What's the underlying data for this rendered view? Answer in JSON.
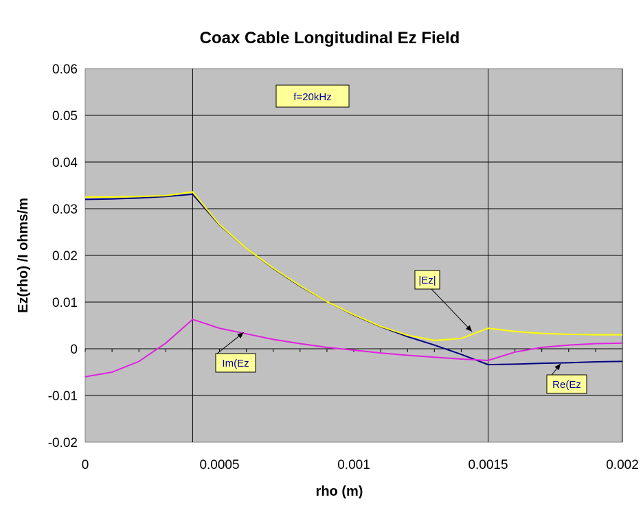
{
  "chart_data": {
    "type": "line",
    "title": "Coax Cable Longitudinal Ez Field",
    "xlabel": "rho (m)",
    "ylabel": "Ez(rho) /I  ohms/m",
    "xlim": [
      0,
      0.002
    ],
    "ylim": [
      -0.02,
      0.06
    ],
    "x_ticks": [
      "0",
      "0.0005",
      "0.001",
      "0.0015",
      "0.002"
    ],
    "y_ticks": [
      "0.06",
      "0.05",
      "0.04",
      "0.03",
      "0.02",
      "0.01",
      "0",
      "-0.01",
      "-0.02"
    ],
    "vertical_lines": [
      0.0004,
      0.0015,
      0.002
    ],
    "annotation": "f=20kHz",
    "series": [
      {
        "name": "Re(Ez",
        "color": "#000080",
        "points": [
          [
            0,
            0.032
          ],
          [
            0.0001,
            0.0321
          ],
          [
            0.0002,
            0.0323
          ],
          [
            0.0003,
            0.0326
          ],
          [
            0.0004,
            0.0331
          ],
          [
            0.0005,
            0.0265
          ],
          [
            0.0006,
            0.0215
          ],
          [
            0.0007,
            0.0172
          ],
          [
            0.0008,
            0.0134
          ],
          [
            0.0009,
            0.0101
          ],
          [
            0.001,
            0.0072
          ],
          [
            0.0011,
            0.0047
          ],
          [
            0.0012,
            0.0026
          ],
          [
            0.0013,
            0.0008
          ],
          [
            0.0014,
            -0.0012
          ],
          [
            0.0015,
            -0.0034
          ],
          [
            0.0016,
            -0.0033
          ],
          [
            0.0017,
            -0.0031
          ],
          [
            0.0018,
            -0.003
          ],
          [
            0.0019,
            -0.0028
          ],
          [
            0.002,
            -0.0027
          ]
        ]
      },
      {
        "name": "Im(Ez",
        "color": "#e020e0",
        "points": [
          [
            0,
            -0.006
          ],
          [
            0.0001,
            -0.005
          ],
          [
            0.0002,
            -0.0027
          ],
          [
            0.0003,
            0.0012
          ],
          [
            0.0004,
            0.0063
          ],
          [
            0.0005,
            0.0044
          ],
          [
            0.0006,
            0.0032
          ],
          [
            0.0007,
            0.002
          ],
          [
            0.0008,
            0.0011
          ],
          [
            0.0009,
            0.0003
          ],
          [
            0.001,
            -0.0003
          ],
          [
            0.0011,
            -0.0009
          ],
          [
            0.0012,
            -0.0014
          ],
          [
            0.0013,
            -0.0018
          ],
          [
            0.0014,
            -0.0022
          ],
          [
            0.0015,
            -0.0025
          ],
          [
            0.0016,
            -0.0007
          ],
          [
            0.0017,
            0.0003
          ],
          [
            0.0018,
            0.0008
          ],
          [
            0.0019,
            0.0011
          ],
          [
            0.002,
            0.0012
          ]
        ]
      },
      {
        "name": "|Ez|",
        "color": "#ffff00",
        "points": [
          [
            0,
            0.0325
          ],
          [
            0.0001,
            0.0325
          ],
          [
            0.0002,
            0.0326
          ],
          [
            0.0003,
            0.0328
          ],
          [
            0.0004,
            0.0336
          ],
          [
            0.0005,
            0.0266
          ],
          [
            0.0006,
            0.0215
          ],
          [
            0.0007,
            0.0173
          ],
          [
            0.0008,
            0.0135
          ],
          [
            0.0009,
            0.0101
          ],
          [
            0.001,
            0.0073
          ],
          [
            0.0011,
            0.0048
          ],
          [
            0.0012,
            0.0029
          ],
          [
            0.0013,
            0.0018
          ],
          [
            0.0014,
            0.0022
          ],
          [
            0.0015,
            0.0044
          ],
          [
            0.0016,
            0.0037
          ],
          [
            0.0017,
            0.0033
          ],
          [
            0.0018,
            0.0031
          ],
          [
            0.0019,
            0.003
          ],
          [
            0.002,
            0.003
          ]
        ]
      }
    ],
    "labels": [
      {
        "text": "|Ez|",
        "points_to": [
          0.00144,
          0.0037
        ]
      },
      {
        "text": "Im(Ez",
        "points_to": [
          0.00059,
          0.0035
        ]
      },
      {
        "text": "Re(Ez",
        "points_to": [
          0.00177,
          -0.0032
        ]
      }
    ]
  }
}
